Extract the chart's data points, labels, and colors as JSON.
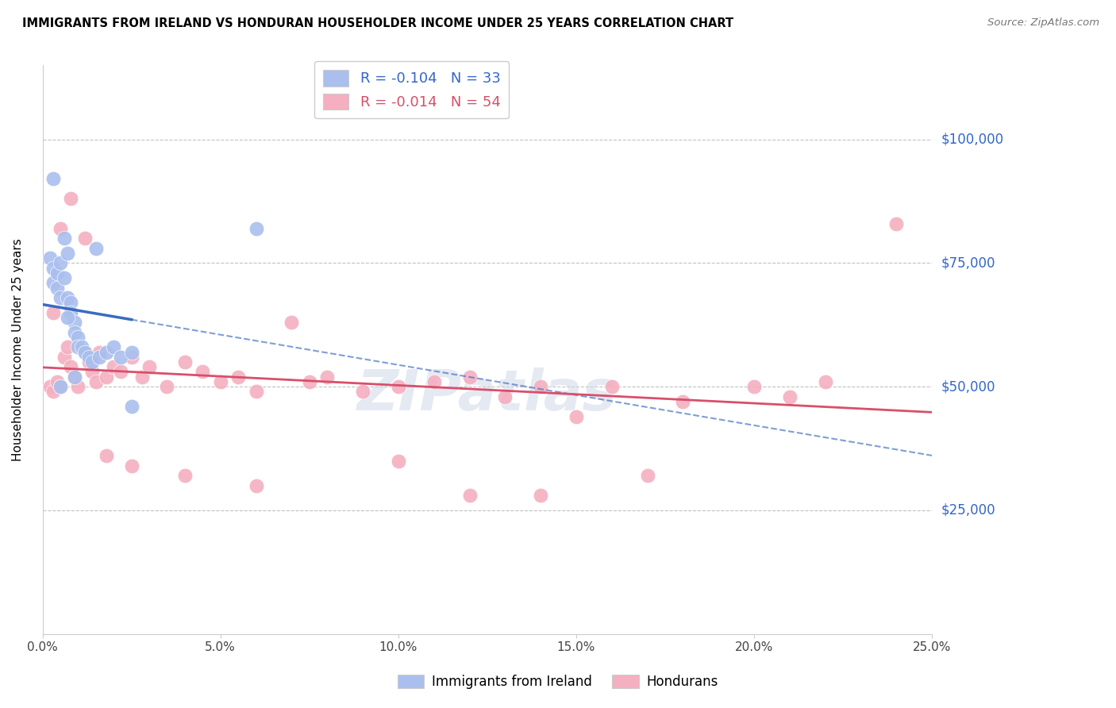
{
  "title": "IMMIGRANTS FROM IRELAND VS HONDURAN HOUSEHOLDER INCOME UNDER 25 YEARS CORRELATION CHART",
  "source": "Source: ZipAtlas.com",
  "ylabel": "Householder Income Under 25 years",
  "xlabel_ticks": [
    "0.0%",
    "5.0%",
    "10.0%",
    "15.0%",
    "20.0%",
    "25.0%"
  ],
  "xlabel_vals": [
    0.0,
    0.05,
    0.1,
    0.15,
    0.2,
    0.25
  ],
  "ytick_labels": [
    "$25,000",
    "$50,000",
    "$75,000",
    "$100,000"
  ],
  "ytick_vals": [
    25000,
    50000,
    75000,
    100000
  ],
  "xlim": [
    0.0,
    0.25
  ],
  "ylim": [
    0,
    115000
  ],
  "ireland_R": "-0.104",
  "ireland_N": "33",
  "honduran_R": "-0.014",
  "honduran_N": "54",
  "ireland_color": "#aabfee",
  "honduran_color": "#f4afc0",
  "ireland_line_color": "#3a6bbf",
  "honduran_line_color": "#d94f6a",
  "background_color": "#ffffff",
  "grid_color": "#bbbbbb",
  "watermark_text": "ZIPatlas",
  "ireland_scatter_x": [
    0.002,
    0.003,
    0.003,
    0.004,
    0.004,
    0.005,
    0.005,
    0.006,
    0.006,
    0.007,
    0.007,
    0.008,
    0.008,
    0.009,
    0.009,
    0.01,
    0.01,
    0.011,
    0.012,
    0.013,
    0.014,
    0.015,
    0.016,
    0.018,
    0.02,
    0.022,
    0.025,
    0.003,
    0.005,
    0.007,
    0.009,
    0.025,
    0.06
  ],
  "ireland_scatter_y": [
    76000,
    74000,
    71000,
    73000,
    70000,
    75000,
    68000,
    80000,
    72000,
    77000,
    68000,
    67000,
    65000,
    63000,
    61000,
    60000,
    58000,
    58000,
    57000,
    56000,
    55000,
    78000,
    56000,
    57000,
    58000,
    56000,
    57000,
    92000,
    50000,
    64000,
    52000,
    46000,
    82000
  ],
  "honduran_scatter_x": [
    0.002,
    0.003,
    0.004,
    0.005,
    0.006,
    0.007,
    0.008,
    0.009,
    0.01,
    0.012,
    0.013,
    0.014,
    0.015,
    0.016,
    0.018,
    0.02,
    0.022,
    0.025,
    0.028,
    0.03,
    0.035,
    0.04,
    0.045,
    0.05,
    0.055,
    0.06,
    0.07,
    0.075,
    0.08,
    0.09,
    0.1,
    0.11,
    0.12,
    0.13,
    0.14,
    0.15,
    0.16,
    0.18,
    0.2,
    0.22,
    0.003,
    0.005,
    0.008,
    0.012,
    0.018,
    0.025,
    0.04,
    0.06,
    0.1,
    0.12,
    0.14,
    0.17,
    0.21,
    0.24
  ],
  "honduran_scatter_y": [
    50000,
    49000,
    51000,
    50000,
    56000,
    58000,
    54000,
    52000,
    50000,
    57000,
    55000,
    53000,
    51000,
    57000,
    52000,
    54000,
    53000,
    56000,
    52000,
    54000,
    50000,
    55000,
    53000,
    51000,
    52000,
    49000,
    63000,
    51000,
    52000,
    49000,
    50000,
    51000,
    52000,
    48000,
    50000,
    44000,
    50000,
    47000,
    50000,
    51000,
    65000,
    82000,
    88000,
    80000,
    36000,
    34000,
    32000,
    30000,
    35000,
    28000,
    28000,
    32000,
    48000,
    83000
  ]
}
